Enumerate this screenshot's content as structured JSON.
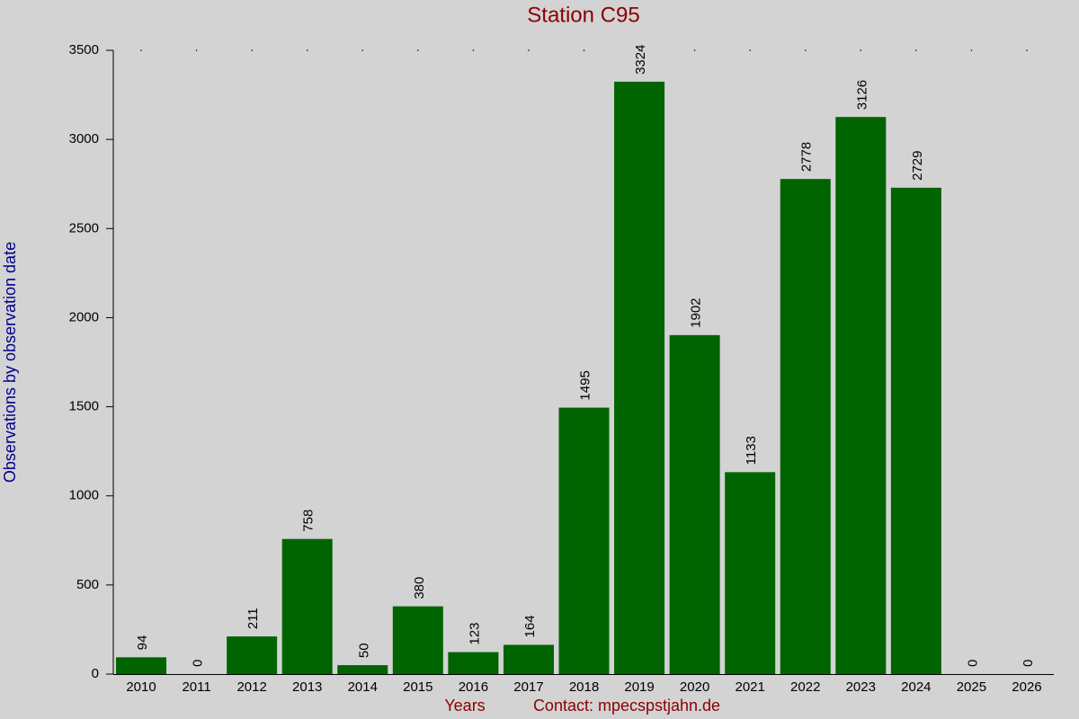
{
  "chart_data": {
    "type": "bar",
    "title": "Station C95",
    "x_label": "Years",
    "y_label": "Observations by observation date",
    "footer": "Contact: mpecspstjahn.de",
    "categories": [
      "2010",
      "2011",
      "2012",
      "2013",
      "2014",
      "2015",
      "2016",
      "2017",
      "2018",
      "2019",
      "2020",
      "2021",
      "2022",
      "2023",
      "2024",
      "2025",
      "2026"
    ],
    "values": [
      94,
      0,
      211,
      758,
      50,
      380,
      123,
      164,
      1495,
      3324,
      1902,
      1133,
      2778,
      3126,
      2729,
      0,
      0
    ],
    "color": "#006400",
    "ylim": [
      0,
      3500
    ],
    "yticks": [
      0,
      500,
      1000,
      1500,
      2000,
      2500,
      3000,
      3500
    ],
    "grid": false
  }
}
